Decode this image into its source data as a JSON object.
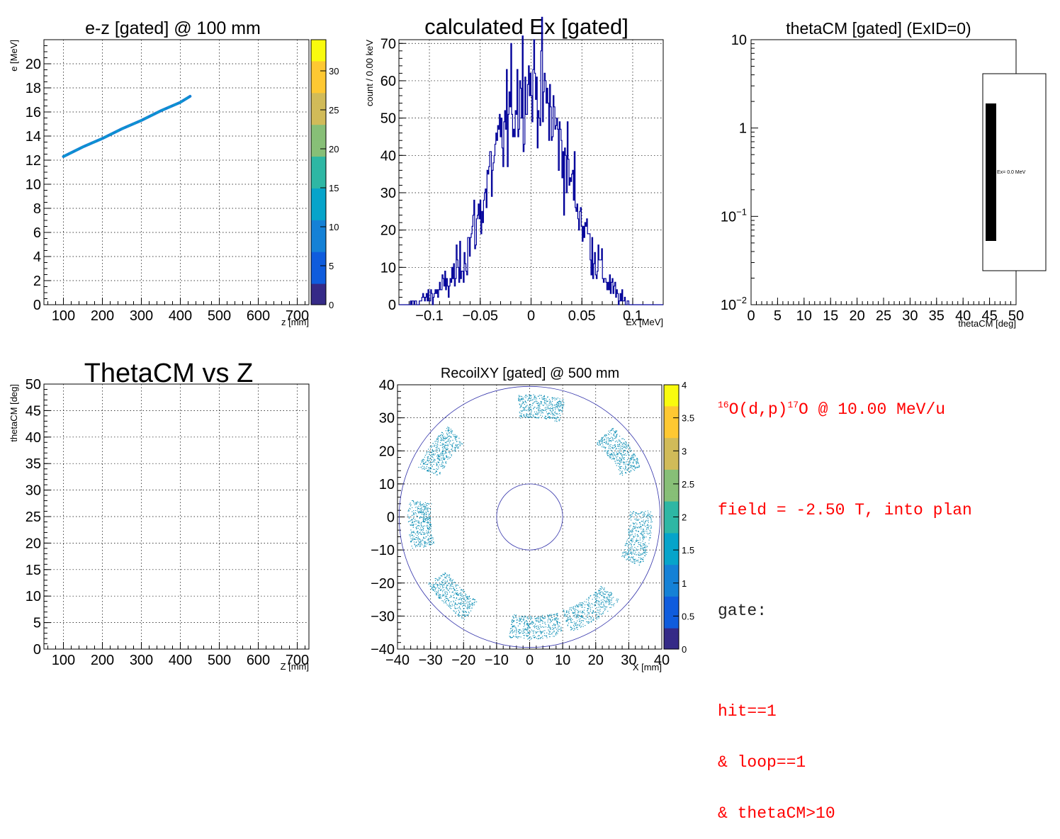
{
  "panels": {
    "ez": {
      "title": "e-z [gated] @   100 mm",
      "xlabel": "z [mm]",
      "ylabel": "e [MeV]",
      "xlim": [
        50,
        730
      ],
      "ylim": [
        0,
        22
      ],
      "xticks": [
        "100",
        "200",
        "300",
        "400",
        "500",
        "600",
        "700"
      ],
      "yticks": [
        "0",
        "2",
        "4",
        "6",
        "8",
        "10",
        "12",
        "14",
        "16",
        "18",
        "20"
      ],
      "zticks": [
        "0",
        "5",
        "10",
        "15",
        "20",
        "25",
        "30"
      ],
      "zlim": [
        0,
        34
      ],
      "chart_data": {
        "type": "scatter",
        "x": [
          100,
          150,
          200,
          250,
          300,
          350,
          400,
          425
        ],
        "y": [
          12.3,
          13.1,
          13.8,
          14.6,
          15.3,
          16.1,
          16.8,
          17.3
        ],
        "grid": true
      }
    },
    "ex": {
      "title": "calculated Ex [gated]",
      "xlabel": "Ex [MeV]",
      "ylabel": "count / 0.00 keV",
      "xlim": [
        -0.13,
        0.13
      ],
      "ylim": [
        0,
        71
      ],
      "xticks": [
        "−0.1",
        "−0.05",
        "0",
        "0.05",
        "0.1"
      ],
      "yticks": [
        "0",
        "10",
        "20",
        "30",
        "40",
        "50",
        "60",
        "70"
      ],
      "chart_data": {
        "type": "line",
        "x": [
          -0.12,
          -0.1,
          -0.08,
          -0.07,
          -0.06,
          -0.05,
          -0.04,
          -0.03,
          -0.02,
          -0.01,
          0,
          0.01,
          0.02,
          0.03,
          0.04,
          0.05,
          0.06,
          0.07,
          0.08,
          0.09,
          0.1
        ],
        "y": [
          0,
          2,
          6,
          10,
          17,
          25,
          35,
          43,
          52,
          58,
          60,
          57,
          51,
          42,
          33,
          23,
          15,
          9,
          4,
          1,
          0
        ],
        "grid": true
      }
    },
    "theta": {
      "title": "thetaCM [gated] (ExID=0)",
      "xlabel": "thetaCM [deg]",
      "xlim": [
        0,
        50
      ],
      "ylim": [
        0.01,
        10
      ],
      "xticks": [
        "0",
        "5",
        "10",
        "15",
        "20",
        "25",
        "30",
        "35",
        "40",
        "45",
        "50"
      ],
      "yticks_log": [
        {
          "base": "10",
          "exp": "−2"
        },
        {
          "base": "10",
          "exp": "−1"
        },
        {
          "base": "1",
          "exp": ""
        },
        {
          "base": "10",
          "exp": ""
        }
      ],
      "legend_text": "Ex=  0.0 MeV",
      "chart_data": {
        "type": "line",
        "x": [],
        "y": [],
        "scale": "log"
      }
    },
    "tz": {
      "title": "ThetaCM vs Z",
      "xlabel": "Z [mm]",
      "ylabel": "thetaCM [deg]",
      "xlim": [
        50,
        730
      ],
      "ylim": [
        0,
        50
      ],
      "xticks": [
        "100",
        "200",
        "300",
        "400",
        "500",
        "600",
        "700"
      ],
      "yticks": [
        "0",
        "5",
        "10",
        "15",
        "20",
        "25",
        "30",
        "35",
        "40",
        "45",
        "50"
      ],
      "chart_data": {
        "type": "scatter",
        "x": [],
        "y": [],
        "grid": true
      }
    },
    "xy": {
      "title": "RecoilXY [gated] @  500 mm",
      "xlabel": "X [mm]",
      "xlim": [
        -40,
        40
      ],
      "ylim": [
        -40,
        40
      ],
      "xticks": [
        "−40",
        "−30",
        "−20",
        "−10",
        "0",
        "10",
        "20",
        "30",
        "40"
      ],
      "yticks": [
        "−40",
        "−30",
        "−20",
        "−10",
        "0",
        "10",
        "20",
        "30",
        "40"
      ],
      "zticks": [
        "0",
        "0.5",
        "1",
        "1.5",
        "2",
        "2.5",
        "3",
        "3.5",
        "4"
      ],
      "zlim": [
        0,
        4
      ],
      "chart_data": {
        "type": "heatmap",
        "inner_circle_radius": 10,
        "outer_circle_radius": 39.5,
        "arc_sectors_deg": [
          [
            73,
            96
          ],
          [
            24,
            48
          ],
          [
            -24,
            3
          ],
          [
            -71,
            -43
          ],
          [
            -100,
            -74
          ],
          [
            -147,
            -122
          ],
          [
            172,
            196
          ],
          [
            132,
            156
          ]
        ],
        "arc_radius_range": [
          30,
          37
        ],
        "grid": true
      }
    }
  },
  "info": {
    "reaction_sup1": "16",
    "reaction_a": "O(d,p)",
    "reaction_sup2": "17",
    "reaction_b": "O @ 10.00 MeV/u",
    "field": "field = -2.50 T, into plan",
    "gate_label": "gate:",
    "gate_lines": [
      "hit==1",
      "& loop==1",
      "& thetaCM>10"
    ]
  },
  "colors": {
    "histo": "#000099",
    "circle": "#3333aa",
    "text_red": "#ff0000",
    "palette": [
      "#352a87",
      "#0f5cdd",
      "#1481d6",
      "#06a4ca",
      "#2eb7a4",
      "#87bf77",
      "#d1bb59",
      "#fec832",
      "#f9fb0e"
    ]
  }
}
